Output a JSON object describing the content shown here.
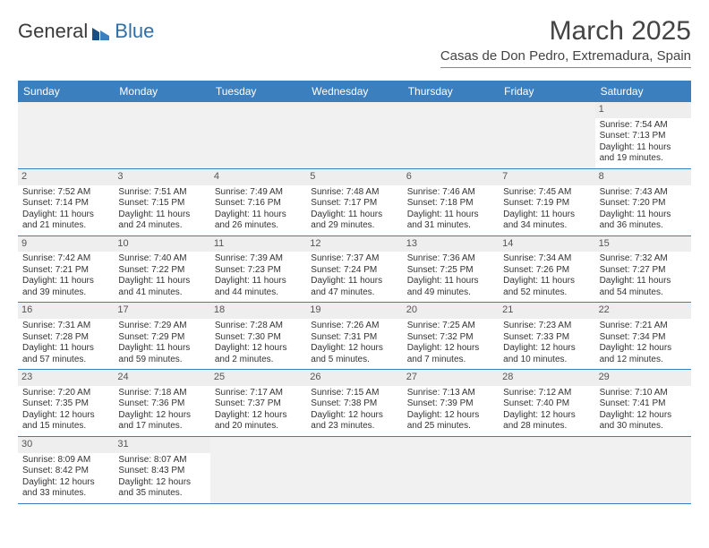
{
  "logo": {
    "part1": "General",
    "part2": "Blue"
  },
  "title": "March 2025",
  "location": "Casas de Don Pedro, Extremadura, Spain",
  "colors": {
    "header_bg": "#3b7fbf",
    "header_fg": "#ffffff",
    "daybar_bg": "#eeeeee",
    "blank_bg": "#f1f1f1",
    "cell_border": "#3b7fbf",
    "text": "#333333",
    "logo_blue": "#2f6fa8"
  },
  "dayNames": [
    "Sunday",
    "Monday",
    "Tuesday",
    "Wednesday",
    "Thursday",
    "Friday",
    "Saturday"
  ],
  "weeks": [
    [
      null,
      null,
      null,
      null,
      null,
      null,
      {
        "n": 1,
        "sr": "7:54 AM",
        "ss": "7:13 PM",
        "dl": "11 hours and 19 minutes."
      }
    ],
    [
      {
        "n": 2,
        "sr": "7:52 AM",
        "ss": "7:14 PM",
        "dl": "11 hours and 21 minutes."
      },
      {
        "n": 3,
        "sr": "7:51 AM",
        "ss": "7:15 PM",
        "dl": "11 hours and 24 minutes."
      },
      {
        "n": 4,
        "sr": "7:49 AM",
        "ss": "7:16 PM",
        "dl": "11 hours and 26 minutes."
      },
      {
        "n": 5,
        "sr": "7:48 AM",
        "ss": "7:17 PM",
        "dl": "11 hours and 29 minutes."
      },
      {
        "n": 6,
        "sr": "7:46 AM",
        "ss": "7:18 PM",
        "dl": "11 hours and 31 minutes."
      },
      {
        "n": 7,
        "sr": "7:45 AM",
        "ss": "7:19 PM",
        "dl": "11 hours and 34 minutes."
      },
      {
        "n": 8,
        "sr": "7:43 AM",
        "ss": "7:20 PM",
        "dl": "11 hours and 36 minutes."
      }
    ],
    [
      {
        "n": 9,
        "sr": "7:42 AM",
        "ss": "7:21 PM",
        "dl": "11 hours and 39 minutes."
      },
      {
        "n": 10,
        "sr": "7:40 AM",
        "ss": "7:22 PM",
        "dl": "11 hours and 41 minutes."
      },
      {
        "n": 11,
        "sr": "7:39 AM",
        "ss": "7:23 PM",
        "dl": "11 hours and 44 minutes."
      },
      {
        "n": 12,
        "sr": "7:37 AM",
        "ss": "7:24 PM",
        "dl": "11 hours and 47 minutes."
      },
      {
        "n": 13,
        "sr": "7:36 AM",
        "ss": "7:25 PM",
        "dl": "11 hours and 49 minutes."
      },
      {
        "n": 14,
        "sr": "7:34 AM",
        "ss": "7:26 PM",
        "dl": "11 hours and 52 minutes."
      },
      {
        "n": 15,
        "sr": "7:32 AM",
        "ss": "7:27 PM",
        "dl": "11 hours and 54 minutes."
      }
    ],
    [
      {
        "n": 16,
        "sr": "7:31 AM",
        "ss": "7:28 PM",
        "dl": "11 hours and 57 minutes."
      },
      {
        "n": 17,
        "sr": "7:29 AM",
        "ss": "7:29 PM",
        "dl": "11 hours and 59 minutes."
      },
      {
        "n": 18,
        "sr": "7:28 AM",
        "ss": "7:30 PM",
        "dl": "12 hours and 2 minutes."
      },
      {
        "n": 19,
        "sr": "7:26 AM",
        "ss": "7:31 PM",
        "dl": "12 hours and 5 minutes."
      },
      {
        "n": 20,
        "sr": "7:25 AM",
        "ss": "7:32 PM",
        "dl": "12 hours and 7 minutes."
      },
      {
        "n": 21,
        "sr": "7:23 AM",
        "ss": "7:33 PM",
        "dl": "12 hours and 10 minutes."
      },
      {
        "n": 22,
        "sr": "7:21 AM",
        "ss": "7:34 PM",
        "dl": "12 hours and 12 minutes."
      }
    ],
    [
      {
        "n": 23,
        "sr": "7:20 AM",
        "ss": "7:35 PM",
        "dl": "12 hours and 15 minutes."
      },
      {
        "n": 24,
        "sr": "7:18 AM",
        "ss": "7:36 PM",
        "dl": "12 hours and 17 minutes."
      },
      {
        "n": 25,
        "sr": "7:17 AM",
        "ss": "7:37 PM",
        "dl": "12 hours and 20 minutes."
      },
      {
        "n": 26,
        "sr": "7:15 AM",
        "ss": "7:38 PM",
        "dl": "12 hours and 23 minutes."
      },
      {
        "n": 27,
        "sr": "7:13 AM",
        "ss": "7:39 PM",
        "dl": "12 hours and 25 minutes."
      },
      {
        "n": 28,
        "sr": "7:12 AM",
        "ss": "7:40 PM",
        "dl": "12 hours and 28 minutes."
      },
      {
        "n": 29,
        "sr": "7:10 AM",
        "ss": "7:41 PM",
        "dl": "12 hours and 30 minutes."
      }
    ],
    [
      {
        "n": 30,
        "sr": "8:09 AM",
        "ss": "8:42 PM",
        "dl": "12 hours and 33 minutes."
      },
      {
        "n": 31,
        "sr": "8:07 AM",
        "ss": "8:43 PM",
        "dl": "12 hours and 35 minutes."
      },
      null,
      null,
      null,
      null,
      null
    ]
  ],
  "labels": {
    "sunrise": "Sunrise: ",
    "sunset": "Sunset: ",
    "daylight": "Daylight: "
  }
}
